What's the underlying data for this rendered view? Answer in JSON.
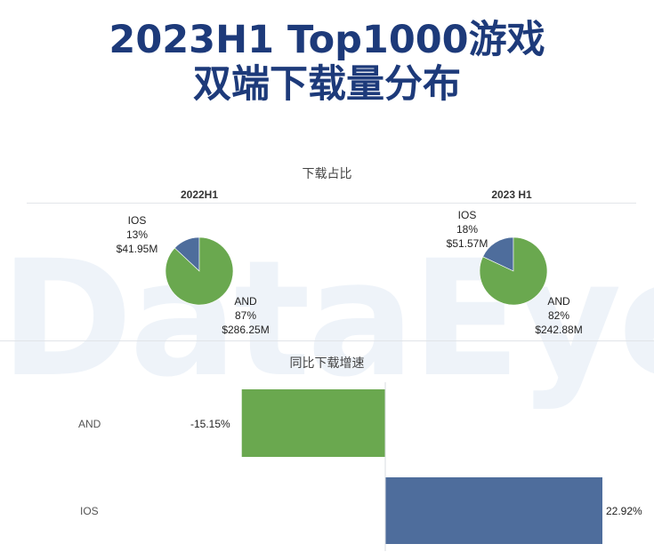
{
  "title": {
    "line1": "2023H1 Top1000游戏",
    "line2": "双端下载量分布"
  },
  "watermark": "DataEye",
  "colors": {
    "and": "#6aa84f",
    "ios": "#4e6d9c",
    "title": "#1d3a7a"
  },
  "chart_data": [
    {
      "type": "pie",
      "title": "下载占比",
      "pies": [
        {
          "label": "2022H1",
          "slices": [
            {
              "name": "IOS",
              "percent": 13,
              "value_label": "$41.95M"
            },
            {
              "name": "AND",
              "percent": 87,
              "value_label": "$286.25M"
            }
          ]
        },
        {
          "label": "2023 H1",
          "slices": [
            {
              "name": "IOS",
              "percent": 18,
              "value_label": "$51.57M"
            },
            {
              "name": "AND",
              "percent": 82,
              "value_label": "$242.88M"
            }
          ]
        }
      ]
    },
    {
      "type": "bar",
      "orientation": "horizontal",
      "title": "同比下载增速",
      "categories": [
        "AND",
        "IOS"
      ],
      "values": [
        -15.15,
        22.92
      ],
      "value_labels": [
        "-15.15%",
        "22.92%"
      ],
      "xlim": [
        -15.15,
        22.92
      ]
    }
  ]
}
